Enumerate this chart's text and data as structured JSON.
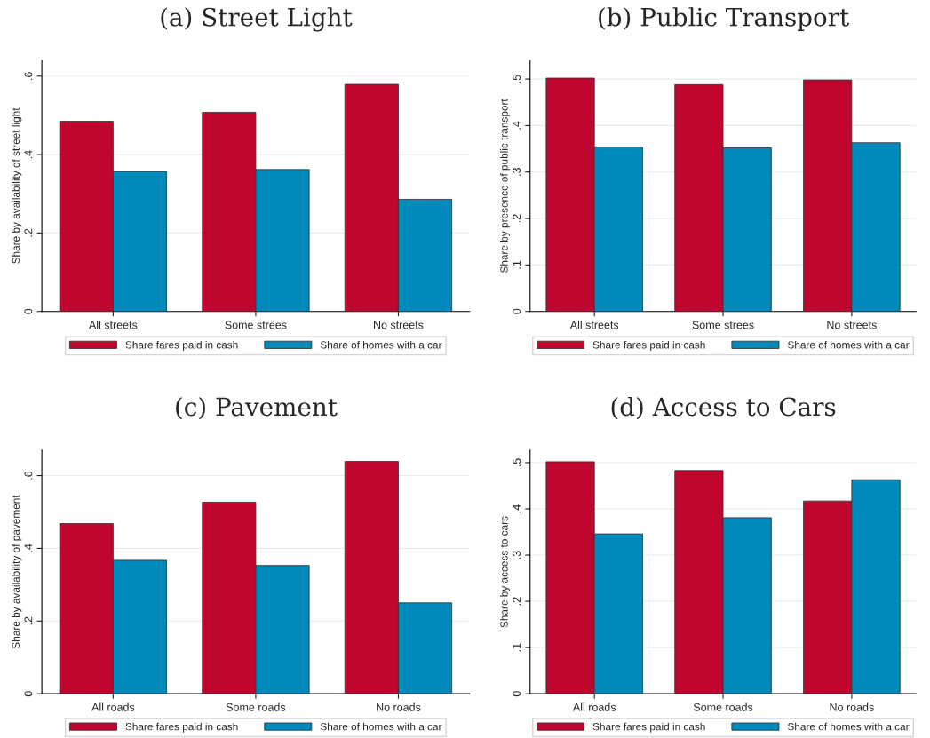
{
  "chart_data": [
    {
      "type": "bar",
      "title": "(a) Street Light",
      "ylabel": "Share by availability of street light",
      "categories": [
        "All streets",
        "Some strees",
        "No streets"
      ],
      "series": [
        {
          "name": "Share fares paid in cash",
          "color": "#c0062f",
          "values": [
            0.485,
            0.508,
            0.579
          ]
        },
        {
          "name": "Share of homes with a car",
          "color": "#0089bb",
          "values": [
            0.357,
            0.362,
            0.286
          ]
        }
      ],
      "ylim": [
        0,
        0.64
      ],
      "yticks": [
        0,
        {
          "value": 0.2,
          "label": ".2"
        },
        {
          "value": 0.4,
          "label": ".4"
        },
        {
          "value": 0.6,
          "label": ".6"
        }
      ],
      "grid": "y",
      "legend": "bottom"
    },
    {
      "type": "bar",
      "title": "(b) Public Transport",
      "ylabel": "Share by presence of public transport",
      "categories": [
        "All streets",
        "Some strees",
        "No streets"
      ],
      "series": [
        {
          "name": "Share fares paid in cash",
          "color": "#c0062f",
          "values": [
            0.502,
            0.488,
            0.498
          ]
        },
        {
          "name": "Share of homes with a car",
          "color": "#0089bb",
          "values": [
            0.354,
            0.352,
            0.363
          ]
        }
      ],
      "ylim": [
        0,
        0.54
      ],
      "yticks": [
        0,
        {
          "value": 0.1,
          "label": ".1"
        },
        {
          "value": 0.2,
          "label": ".2"
        },
        {
          "value": 0.3,
          "label": ".3"
        },
        {
          "value": 0.4,
          "label": ".4"
        },
        {
          "value": 0.5,
          "label": ".5"
        }
      ],
      "grid": "y",
      "legend": "bottom"
    },
    {
      "type": "bar",
      "title": "(c) Pavement",
      "ylabel": "Share by availability of pavement",
      "categories": [
        "All roads",
        "Some roads",
        "No roads"
      ],
      "series": [
        {
          "name": "Share fares paid in cash",
          "color": "#c0062f",
          "values": [
            0.468,
            0.527,
            0.639
          ]
        },
        {
          "name": "Share of homes with a car",
          "color": "#0089bb",
          "values": [
            0.367,
            0.353,
            0.25
          ]
        }
      ],
      "ylim": [
        0,
        0.67
      ],
      "yticks": [
        0,
        {
          "value": 0.2,
          "label": ".2"
        },
        {
          "value": 0.4,
          "label": ".4"
        },
        {
          "value": 0.6,
          "label": ".6"
        }
      ],
      "grid": "y",
      "legend": "bottom"
    },
    {
      "type": "bar",
      "title": "(d) Access to Cars",
      "ylabel": "Share by access to cars",
      "categories": [
        "All roads",
        "Some roads",
        "No roads"
      ],
      "series": [
        {
          "name": "Share fares paid in cash",
          "color": "#c0062f",
          "values": [
            0.502,
            0.483,
            0.417
          ]
        },
        {
          "name": "Share of homes with a car",
          "color": "#0089bb",
          "values": [
            0.346,
            0.381,
            0.463
          ]
        }
      ],
      "ylim": [
        0,
        0.527
      ],
      "yticks": [
        0,
        {
          "value": 0.1,
          "label": ".1"
        },
        {
          "value": 0.2,
          "label": ".2"
        },
        {
          "value": 0.3,
          "label": ".3"
        },
        {
          "value": 0.4,
          "label": ".4"
        },
        {
          "value": 0.5,
          "label": ".5"
        }
      ],
      "grid": "y",
      "legend": "bottom"
    }
  ]
}
